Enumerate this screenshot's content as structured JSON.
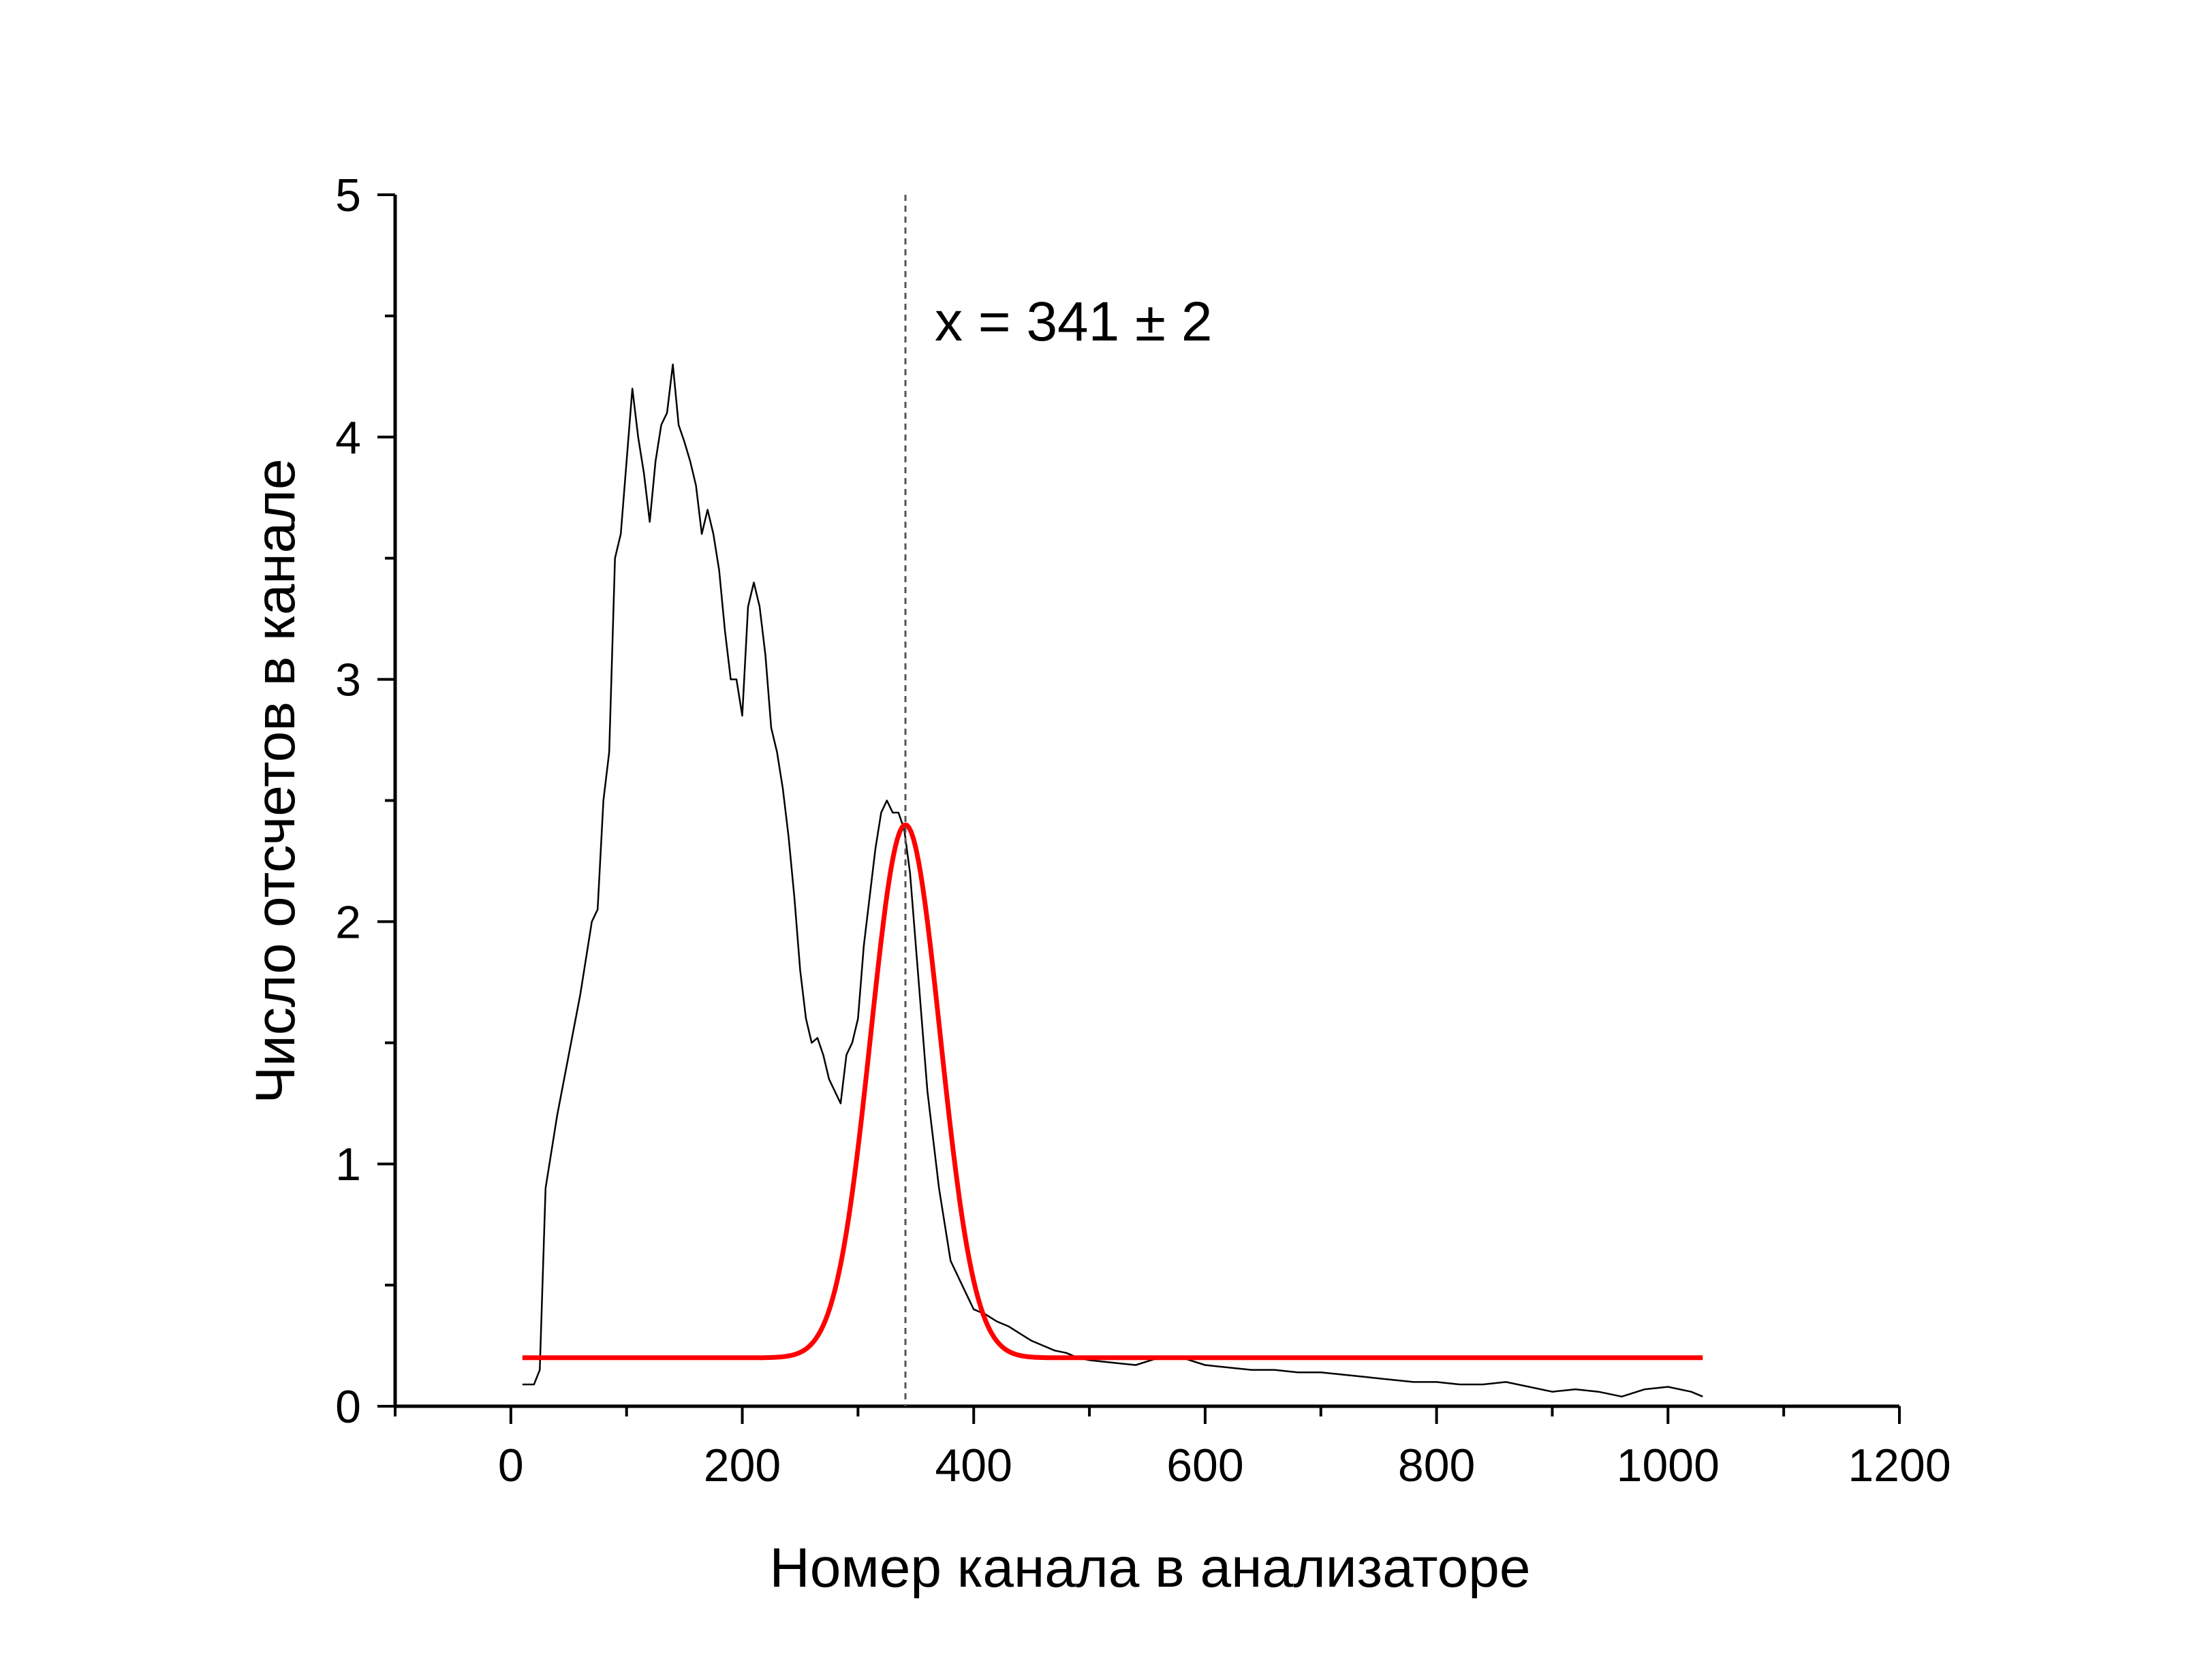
{
  "chart_data": {
    "type": "line",
    "title": "",
    "xlabel": "Номер канала в анализаторе",
    "ylabel": "Число отсчетов в канале",
    "xlim": [
      -100,
      1200
    ],
    "ylim": [
      0,
      5
    ],
    "x_ticks": [
      0,
      200,
      400,
      600,
      800,
      1000,
      1200
    ],
    "y_ticks": [
      0,
      1,
      2,
      3,
      4,
      5
    ],
    "x_tick_labels": [
      "0",
      "200",
      "400",
      "600",
      "800",
      "1000",
      "1200"
    ],
    "y_tick_labels": [
      "0",
      "1",
      "2",
      "3",
      "4",
      "5"
    ],
    "grid": false,
    "legend": "none",
    "annotation": {
      "text": "x = 341 ± 2",
      "x_line": 341
    },
    "series": [
      {
        "role": "measured",
        "color": "#000000",
        "x": [
          10,
          20,
          25,
          30,
          40,
          50,
          60,
          70,
          75,
          80,
          85,
          90,
          95,
          100,
          105,
          110,
          115,
          120,
          125,
          130,
          135,
          140,
          145,
          150,
          155,
          160,
          165,
          170,
          175,
          180,
          185,
          190,
          195,
          200,
          205,
          210,
          215,
          220,
          225,
          230,
          235,
          240,
          245,
          250,
          255,
          260,
          265,
          270,
          275,
          280,
          285,
          290,
          295,
          300,
          305,
          310,
          315,
          320,
          325,
          330,
          335,
          340,
          345,
          350,
          355,
          360,
          365,
          370,
          375,
          380,
          385,
          390,
          395,
          400,
          410,
          420,
          430,
          440,
          450,
          460,
          470,
          480,
          490,
          500,
          520,
          540,
          560,
          580,
          600,
          620,
          640,
          660,
          680,
          700,
          720,
          740,
          760,
          780,
          800,
          820,
          840,
          860,
          880,
          900,
          920,
          940,
          960,
          980,
          1000,
          1020,
          1030
        ],
        "y": [
          0.09,
          0.09,
          0.15,
          0.9,
          1.2,
          1.45,
          1.7,
          2.0,
          2.05,
          2.5,
          2.7,
          3.5,
          3.6,
          3.9,
          4.2,
          4.0,
          3.85,
          3.65,
          3.9,
          4.05,
          4.1,
          4.3,
          4.05,
          3.98,
          3.9,
          3.8,
          3.6,
          3.7,
          3.6,
          3.45,
          3.2,
          3.0,
          3.0,
          2.85,
          3.3,
          3.4,
          3.3,
          3.1,
          2.8,
          2.7,
          2.55,
          2.35,
          2.1,
          1.8,
          1.6,
          1.5,
          1.52,
          1.45,
          1.35,
          1.3,
          1.25,
          1.45,
          1.5,
          1.6,
          1.9,
          2.1,
          2.3,
          2.45,
          2.5,
          2.45,
          2.45,
          2.38,
          2.2,
          1.9,
          1.6,
          1.3,
          1.1,
          0.9,
          0.75,
          0.6,
          0.55,
          0.5,
          0.45,
          0.4,
          0.38,
          0.35,
          0.33,
          0.3,
          0.27,
          0.25,
          0.23,
          0.22,
          0.2,
          0.19,
          0.18,
          0.17,
          0.2,
          0.2,
          0.17,
          0.16,
          0.15,
          0.15,
          0.14,
          0.14,
          0.13,
          0.12,
          0.11,
          0.1,
          0.1,
          0.09,
          0.09,
          0.1,
          0.08,
          0.06,
          0.07,
          0.06,
          0.04,
          0.07,
          0.08,
          0.06,
          0.04
        ]
      },
      {
        "role": "fit",
        "color": "#ff0000",
        "model": "gaussian",
        "baseline": 0.2,
        "amplitude": 2.2,
        "center": 341,
        "sigma": 30,
        "x_range": [
          10,
          1030
        ]
      }
    ]
  }
}
